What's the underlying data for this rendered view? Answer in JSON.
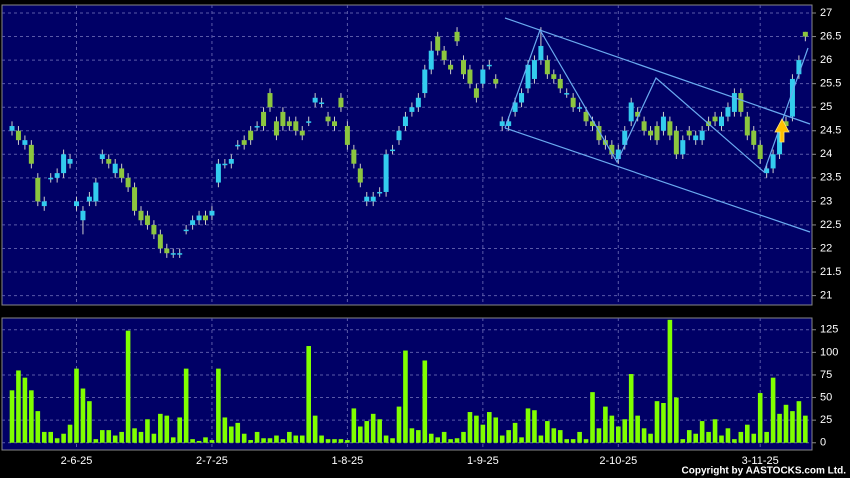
{
  "chart_data": [
    {
      "type": "candlestick",
      "open": [
        24.5,
        24.5,
        24.2,
        24.2,
        23.5,
        22.9,
        23.5,
        23.5,
        23.6,
        23.8,
        22.9,
        22.6,
        23.0,
        23.0,
        23.9,
        23.9,
        23.6,
        23.7,
        23.5,
        23.3,
        22.8,
        22.7,
        22.5,
        22.3,
        22.0,
        21.9,
        21.9,
        22.4,
        22.5,
        22.6,
        22.7,
        22.7,
        23.4,
        23.8,
        23.8,
        24.2,
        24.3,
        24.5,
        24.6,
        24.9,
        25.3,
        24.7,
        24.9,
        24.7,
        24.7,
        24.5,
        24.7,
        25.1,
        25.1,
        24.8,
        24.7,
        25.2,
        24.6,
        24.1,
        23.7,
        23.0,
        23.0,
        23.2,
        23.2,
        24.1,
        24.3,
        24.6,
        24.9,
        25.0,
        25.3,
        25.8,
        26.5,
        26.2,
        25.9,
        26.6,
        26.0,
        25.8,
        25.4,
        25.5,
        25.9,
        25.6,
        24.6,
        24.6,
        24.9,
        25.1,
        25.4,
        25.6,
        26.0,
        26.0,
        25.7,
        25.6,
        25.3,
        25.2,
        25.0,
        24.9,
        24.7,
        24.6,
        24.3,
        24.2,
        23.9,
        24.2,
        24.7,
        24.9,
        24.7,
        24.5,
        24.6,
        24.5,
        24.7,
        24.5,
        24.0,
        24.5,
        24.3,
        24.3,
        24.7,
        24.8,
        24.6,
        24.8,
        24.9,
        25.3,
        24.8,
        24.5,
        24.2,
        23.6,
        23.7,
        24.0,
        24.7,
        24.8,
        25.7,
        26.6
      ],
      "high": [
        24.7,
        24.6,
        24.4,
        24.3,
        23.6,
        23.1,
        23.6,
        23.7,
        24.1,
        24.0,
        23.1,
        22.9,
        23.2,
        23.5,
        24.1,
        24.0,
        23.9,
        23.8,
        23.6,
        23.4,
        22.9,
        22.8,
        22.6,
        22.4,
        22.1,
        22.0,
        22.0,
        22.5,
        22.7,
        22.8,
        22.8,
        22.9,
        23.9,
        23.9,
        24.0,
        24.3,
        24.4,
        24.6,
        24.7,
        25.0,
        25.4,
        24.8,
        25.0,
        24.8,
        24.8,
        24.6,
        24.8,
        25.3,
        25.2,
        24.9,
        24.8,
        25.3,
        24.7,
        24.2,
        23.8,
        23.2,
        23.2,
        23.3,
        24.1,
        24.2,
        24.6,
        24.9,
        25.1,
        25.3,
        25.9,
        26.4,
        26.6,
        26.3,
        26.0,
        26.7,
        26.1,
        25.9,
        25.5,
        25.9,
        26.0,
        25.7,
        24.8,
        24.8,
        25.2,
        25.4,
        26.0,
        26.1,
        26.7,
        26.1,
        25.8,
        25.7,
        25.4,
        25.3,
        25.1,
        25.0,
        24.8,
        24.7,
        24.4,
        24.3,
        24.2,
        24.6,
        25.2,
        25.0,
        24.8,
        24.6,
        24.7,
        24.9,
        24.8,
        24.6,
        24.4,
        24.6,
        24.5,
        24.6,
        24.8,
        24.9,
        24.9,
        25.1,
        25.4,
        25.4,
        24.9,
        24.6,
        24.3,
        23.8,
        24.1,
        24.6,
        24.8,
        25.7,
        26.1,
        26.6
      ],
      "low": [
        24.4,
        24.2,
        24.1,
        23.7,
        22.9,
        22.8,
        23.4,
        23.4,
        23.5,
        23.7,
        22.8,
        22.3,
        22.9,
        22.9,
        23.8,
        23.7,
        23.5,
        23.4,
        23.2,
        22.7,
        22.5,
        22.4,
        22.2,
        21.9,
        21.8,
        21.8,
        21.8,
        22.3,
        22.4,
        22.5,
        22.5,
        22.6,
        23.3,
        23.7,
        23.7,
        24.1,
        24.1,
        24.2,
        24.5,
        24.5,
        24.9,
        24.3,
        24.5,
        24.5,
        24.4,
        24.3,
        24.6,
        25.0,
        25.0,
        24.6,
        24.5,
        24.9,
        24.1,
        23.7,
        23.3,
        22.9,
        22.9,
        23.1,
        23.1,
        24.0,
        24.2,
        24.5,
        24.8,
        24.9,
        25.2,
        25.7,
        26.1,
        25.9,
        25.7,
        26.3,
        25.6,
        25.4,
        25.1,
        25.4,
        25.8,
        25.4,
        24.5,
        24.5,
        24.8,
        25.0,
        25.3,
        25.5,
        25.9,
        25.6,
        25.5,
        25.3,
        25.2,
        24.9,
        24.9,
        24.6,
        24.5,
        24.2,
        24.1,
        23.9,
        23.8,
        24.1,
        24.6,
        24.7,
        24.4,
        24.3,
        24.2,
        24.4,
        24.3,
        23.9,
        23.9,
        24.3,
        24.2,
        24.2,
        24.5,
        24.6,
        24.5,
        24.7,
        24.8,
        24.8,
        24.3,
        24.1,
        23.8,
        23.5,
        23.6,
        23.9,
        24.5,
        24.7,
        25.6,
        26.4
      ],
      "close": [
        24.6,
        24.3,
        24.3,
        23.8,
        23.0,
        23.0,
        23.5,
        23.6,
        24.0,
        23.9,
        23.0,
        22.8,
        23.1,
        23.4,
        24.0,
        23.8,
        23.8,
        23.5,
        23.3,
        22.8,
        22.6,
        22.5,
        22.3,
        22.0,
        21.9,
        21.9,
        21.9,
        22.4,
        22.6,
        22.7,
        22.6,
        22.8,
        23.8,
        23.8,
        23.9,
        24.2,
        24.2,
        24.3,
        24.6,
        24.6,
        25.0,
        24.4,
        24.6,
        24.6,
        24.5,
        24.4,
        24.7,
        25.2,
        25.1,
        24.7,
        24.6,
        25.0,
        24.2,
        23.8,
        23.4,
        23.1,
        23.1,
        23.2,
        24.0,
        24.1,
        24.5,
        24.8,
        25.0,
        25.2,
        25.8,
        26.2,
        26.2,
        26.0,
        25.8,
        26.4,
        25.7,
        25.5,
        25.2,
        25.8,
        25.9,
        25.5,
        24.7,
        24.7,
        25.1,
        25.3,
        25.9,
        26.0,
        26.3,
        25.7,
        25.6,
        25.4,
        25.3,
        25.0,
        25.0,
        24.7,
        24.6,
        24.3,
        24.2,
        24.0,
        24.1,
        24.5,
        25.1,
        24.8,
        24.5,
        24.4,
        24.3,
        24.8,
        24.4,
        24.0,
        24.3,
        24.4,
        24.4,
        24.5,
        24.6,
        24.7,
        24.8,
        25.0,
        25.3,
        24.9,
        24.4,
        24.2,
        23.9,
        23.7,
        24.0,
        24.5,
        24.6,
        25.6,
        26.0,
        26.5
      ],
      "up_color": "#33ccee",
      "down_color": "#8cc63f",
      "ylim": [
        20.8,
        27.17
      ],
      "yticks": [
        21,
        21.5,
        22,
        22.5,
        23,
        23.5,
        24,
        24.5,
        25,
        25.5,
        26,
        26.5,
        27
      ],
      "grid": true
    },
    {
      "type": "bar",
      "categories": [
        null,
        null,
        null,
        null,
        null,
        null,
        null,
        null,
        null,
        null,
        "2-6-25",
        null,
        null,
        null,
        null,
        null,
        null,
        null,
        null,
        null,
        null,
        null,
        null,
        null,
        null,
        null,
        null,
        null,
        null,
        null,
        null,
        "2-7-25",
        null,
        null,
        null,
        null,
        null,
        null,
        null,
        null,
        null,
        null,
        null,
        null,
        null,
        null,
        null,
        null,
        null,
        null,
        null,
        null,
        "1-8-25",
        null,
        null,
        null,
        null,
        null,
        null,
        null,
        null,
        null,
        null,
        null,
        null,
        null,
        null,
        null,
        null,
        null,
        null,
        null,
        null,
        "1-9-25",
        null,
        null,
        null,
        null,
        null,
        null,
        null,
        null,
        null,
        null,
        null,
        null,
        null,
        null,
        null,
        null,
        null,
        null,
        null,
        null,
        "2-10-25",
        null,
        null,
        null,
        null,
        null,
        null,
        null,
        null,
        null,
        null,
        null,
        null,
        null,
        null,
        null,
        null,
        null,
        null,
        null,
        null,
        null,
        "3-11-25",
        null,
        null,
        null,
        null,
        null,
        null,
        null
      ],
      "values": [
        58,
        80,
        72,
        58,
        35,
        12,
        12,
        5,
        10,
        20,
        82,
        60,
        46,
        4,
        14,
        14,
        8,
        12,
        124,
        16,
        12,
        26,
        10,
        32,
        30,
        6,
        28,
        82,
        4,
        2,
        6,
        3,
        82,
        28,
        18,
        22,
        10,
        3,
        12,
        5,
        5,
        8,
        4,
        12,
        8,
        8,
        107,
        30,
        8,
        4,
        4,
        4,
        3,
        38,
        18,
        24,
        32,
        26,
        8,
        5,
        40,
        102,
        16,
        14,
        91,
        10,
        6,
        12,
        4,
        5,
        12,
        34,
        30,
        20,
        34,
        28,
        8,
        14,
        22,
        6,
        38,
        36,
        8,
        24,
        16,
        14,
        4,
        4,
        12,
        4,
        56,
        16,
        40,
        30,
        18,
        26,
        76,
        30,
        16,
        10,
        46,
        44,
        136,
        50,
        4,
        14,
        10,
        24,
        12,
        26,
        8,
        16,
        4,
        12,
        20,
        10,
        55,
        12,
        72,
        32,
        42,
        35,
        46,
        30
      ],
      "color": "#80ff00",
      "ylim": [
        -8,
        138
      ],
      "yticks": [
        0,
        25,
        50,
        75,
        100,
        125
      ],
      "grid": true
    }
  ],
  "copyright": "Copyright by AASTOCKS.com Ltd."
}
